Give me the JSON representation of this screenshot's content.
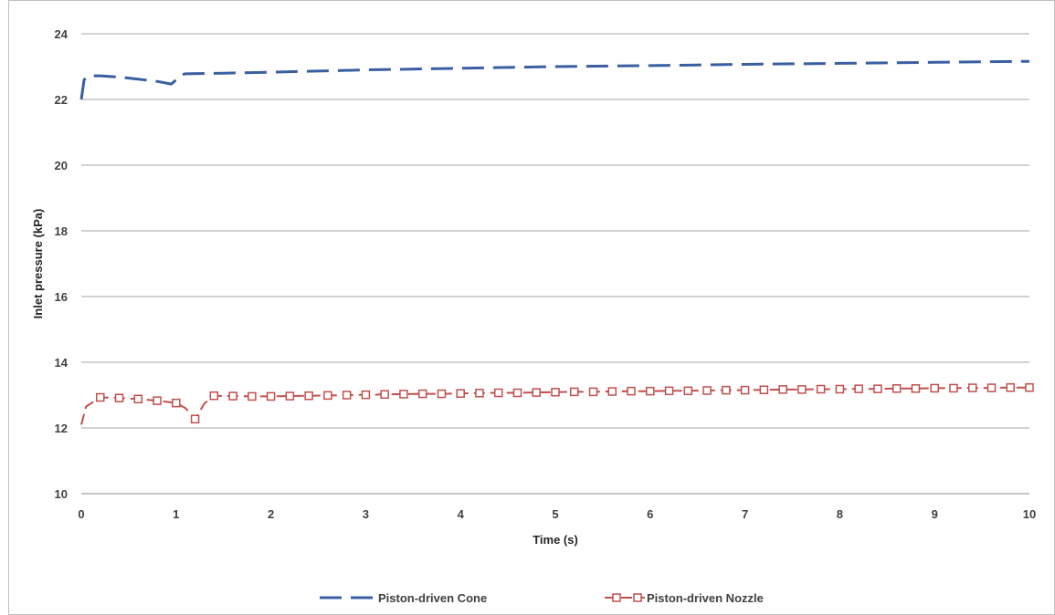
{
  "chart_data": {
    "type": "line",
    "title": "",
    "xlabel": "Time (s)",
    "ylabel": "Inlet pressure (kPa)",
    "xlim": [
      0,
      10
    ],
    "ylim": [
      10,
      24
    ],
    "x_ticks": [
      "0",
      "1",
      "2",
      "3",
      "4",
      "5",
      "6",
      "7",
      "8",
      "9",
      "10"
    ],
    "y_ticks": [
      "10",
      "12",
      "14",
      "16",
      "18",
      "20",
      "22",
      "24"
    ],
    "grid": "horizontal",
    "legend_position": "bottom",
    "series": [
      {
        "name": "Piston-driven Cone",
        "color": "#3a5fa0",
        "line_style": "long-dash",
        "marker": "none",
        "points": [
          [
            0,
            22.0
          ],
          [
            0.03,
            22.6
          ],
          [
            0.08,
            22.72
          ],
          [
            0.2,
            22.72
          ],
          [
            0.4,
            22.68
          ],
          [
            0.6,
            22.62
          ],
          [
            0.8,
            22.55
          ],
          [
            0.95,
            22.47
          ],
          [
            1.0,
            22.6
          ],
          [
            1.05,
            22.75
          ],
          [
            1.1,
            22.78
          ],
          [
            1.5,
            22.8
          ],
          [
            2,
            22.83
          ],
          [
            3,
            22.9
          ],
          [
            4,
            22.95
          ],
          [
            5,
            23.0
          ],
          [
            6,
            23.03
          ],
          [
            7,
            23.07
          ],
          [
            8,
            23.1
          ],
          [
            9,
            23.13
          ],
          [
            10,
            23.16
          ]
        ]
      },
      {
        "name": "Piston-driven Nozzle",
        "color": "#c0504d",
        "line_style": "dash",
        "marker": "open-square",
        "points": [
          [
            0,
            12.1
          ],
          [
            0.05,
            12.65
          ],
          [
            0.2,
            12.93
          ],
          [
            0.4,
            12.91
          ],
          [
            0.6,
            12.88
          ],
          [
            0.8,
            12.83
          ],
          [
            1.0,
            12.76
          ],
          [
            1.1,
            12.6
          ],
          [
            1.2,
            12.27
          ],
          [
            1.3,
            12.75
          ],
          [
            1.4,
            12.98
          ],
          [
            1.6,
            12.97
          ],
          [
            1.8,
            12.96
          ],
          [
            2.0,
            12.96
          ],
          [
            2.2,
            12.97
          ],
          [
            2.4,
            12.98
          ],
          [
            2.6,
            12.99
          ],
          [
            2.8,
            13.0
          ],
          [
            3.0,
            13.01
          ],
          [
            3.2,
            13.02
          ],
          [
            3.4,
            13.03
          ],
          [
            3.6,
            13.04
          ],
          [
            3.8,
            13.04
          ],
          [
            4.0,
            13.05
          ],
          [
            4.2,
            13.06
          ],
          [
            4.4,
            13.07
          ],
          [
            4.6,
            13.07
          ],
          [
            4.8,
            13.08
          ],
          [
            5.0,
            13.09
          ],
          [
            5.2,
            13.1
          ],
          [
            5.4,
            13.1
          ],
          [
            5.6,
            13.11
          ],
          [
            5.8,
            13.12
          ],
          [
            6.0,
            13.12
          ],
          [
            6.2,
            13.13
          ],
          [
            6.4,
            13.13
          ],
          [
            6.6,
            13.14
          ],
          [
            6.8,
            13.15
          ],
          [
            7.0,
            13.15
          ],
          [
            7.2,
            13.16
          ],
          [
            7.4,
            13.17
          ],
          [
            7.6,
            13.17
          ],
          [
            7.8,
            13.18
          ],
          [
            8.0,
            13.18
          ],
          [
            8.2,
            13.19
          ],
          [
            8.4,
            13.19
          ],
          [
            8.6,
            13.2
          ],
          [
            8.8,
            13.2
          ],
          [
            9.0,
            13.21
          ],
          [
            9.2,
            13.21
          ],
          [
            9.4,
            13.22
          ],
          [
            9.6,
            13.22
          ],
          [
            9.8,
            13.23
          ],
          [
            10.0,
            13.23
          ]
        ],
        "marker_x": [
          0.2,
          0.4,
          0.6,
          0.8,
          1.0,
          1.2,
          1.4,
          1.6,
          1.8,
          2.0,
          2.2,
          2.4,
          2.6,
          2.8,
          3.0,
          3.2,
          3.4,
          3.6,
          3.8,
          4.0,
          4.2,
          4.4,
          4.6,
          4.8,
          5.0,
          5.2,
          5.4,
          5.6,
          5.8,
          6.0,
          6.2,
          6.4,
          6.6,
          6.8,
          7.0,
          7.2,
          7.4,
          7.6,
          7.8,
          8.0,
          8.2,
          8.4,
          8.6,
          8.8,
          9.0,
          9.2,
          9.4,
          9.6,
          9.8,
          10.0
        ]
      }
    ]
  }
}
